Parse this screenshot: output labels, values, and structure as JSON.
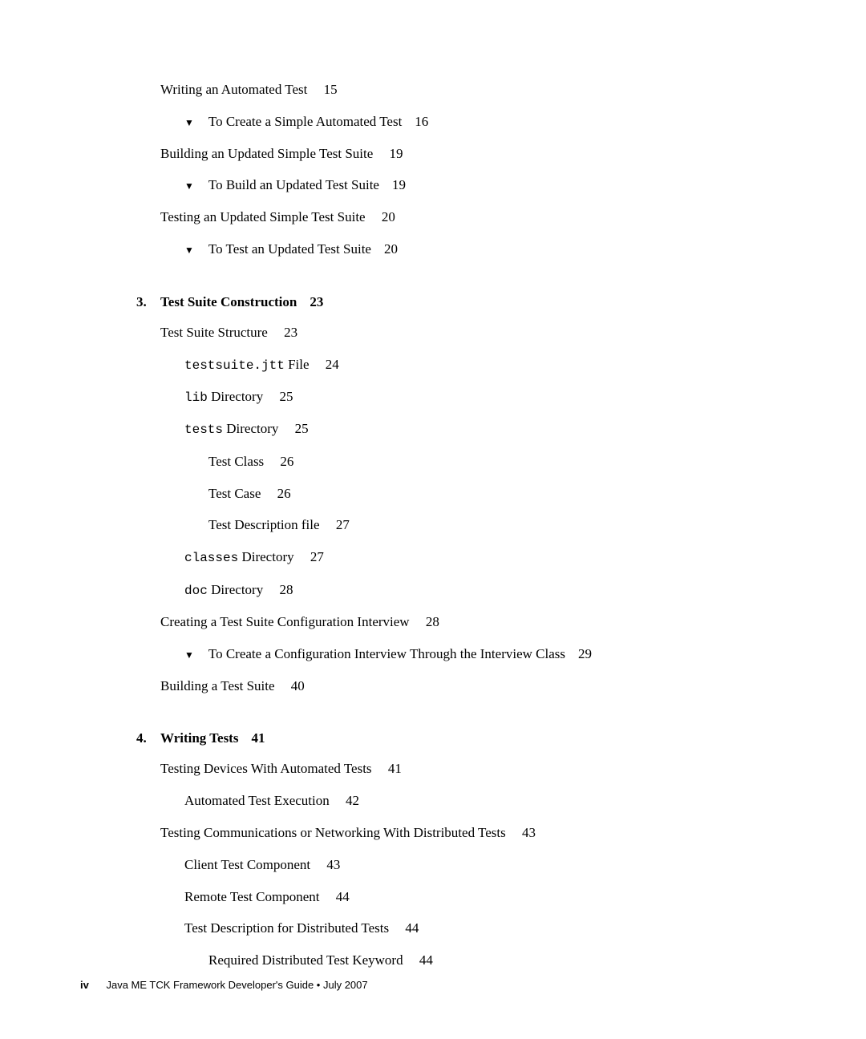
{
  "entries": {
    "e1": {
      "text": "Writing an Automated Test",
      "page": "15"
    },
    "e2": {
      "text": "To Create a Simple Automated Test",
      "page": "16"
    },
    "e3": {
      "text": "Building an Updated Simple Test Suite",
      "page": "19"
    },
    "e4": {
      "text": "To Build an Updated Test Suite",
      "page": "19"
    },
    "e5": {
      "text": "Testing an Updated Simple Test Suite",
      "page": "20"
    },
    "e6": {
      "text": "To Test an Updated Test Suite",
      "page": "20"
    }
  },
  "ch3": {
    "num": "3.",
    "title": "Test Suite Construction",
    "page": "23",
    "e1": {
      "text": "Test Suite Structure",
      "page": "23"
    },
    "e2": {
      "mono": "testsuite.jtt",
      "text": " File",
      "page": "24"
    },
    "e3": {
      "mono": "lib",
      "text": " Directory",
      "page": "25"
    },
    "e4": {
      "mono": "tests",
      "text": " Directory",
      "page": "25"
    },
    "e5": {
      "text": "Test Class",
      "page": "26"
    },
    "e6": {
      "text": "Test Case",
      "page": "26"
    },
    "e7": {
      "text": "Test Description file",
      "page": "27"
    },
    "e8": {
      "mono": "classes",
      "text": " Directory",
      "page": "27"
    },
    "e9": {
      "mono": "doc",
      "text": " Directory",
      "page": "28"
    },
    "e10": {
      "text": "Creating a Test Suite Configuration Interview",
      "page": "28"
    },
    "e11": {
      "text": "To Create a Configuration Interview Through the Interview Class",
      "page": "29"
    },
    "e12": {
      "text": "Building a Test Suite",
      "page": "40"
    }
  },
  "ch4": {
    "num": "4.",
    "title": "Writing Tests",
    "page": "41",
    "e1": {
      "text": "Testing Devices With Automated Tests",
      "page": "41"
    },
    "e2": {
      "text": "Automated Test Execution",
      "page": "42"
    },
    "e3": {
      "text": "Testing Communications or Networking With Distributed Tests",
      "page": "43"
    },
    "e4": {
      "text": "Client Test Component",
      "page": "43"
    },
    "e5": {
      "text": "Remote Test Component",
      "page": "44"
    },
    "e6": {
      "text": "Test Description for Distributed Tests",
      "page": "44"
    },
    "e7": {
      "text": "Required Distributed Test Keyword",
      "page": "44"
    }
  },
  "footer": {
    "pageNum": "iv",
    "text": "Java ME TCK Framework Developer's Guide  •  July 2007"
  },
  "bullet": "▼"
}
